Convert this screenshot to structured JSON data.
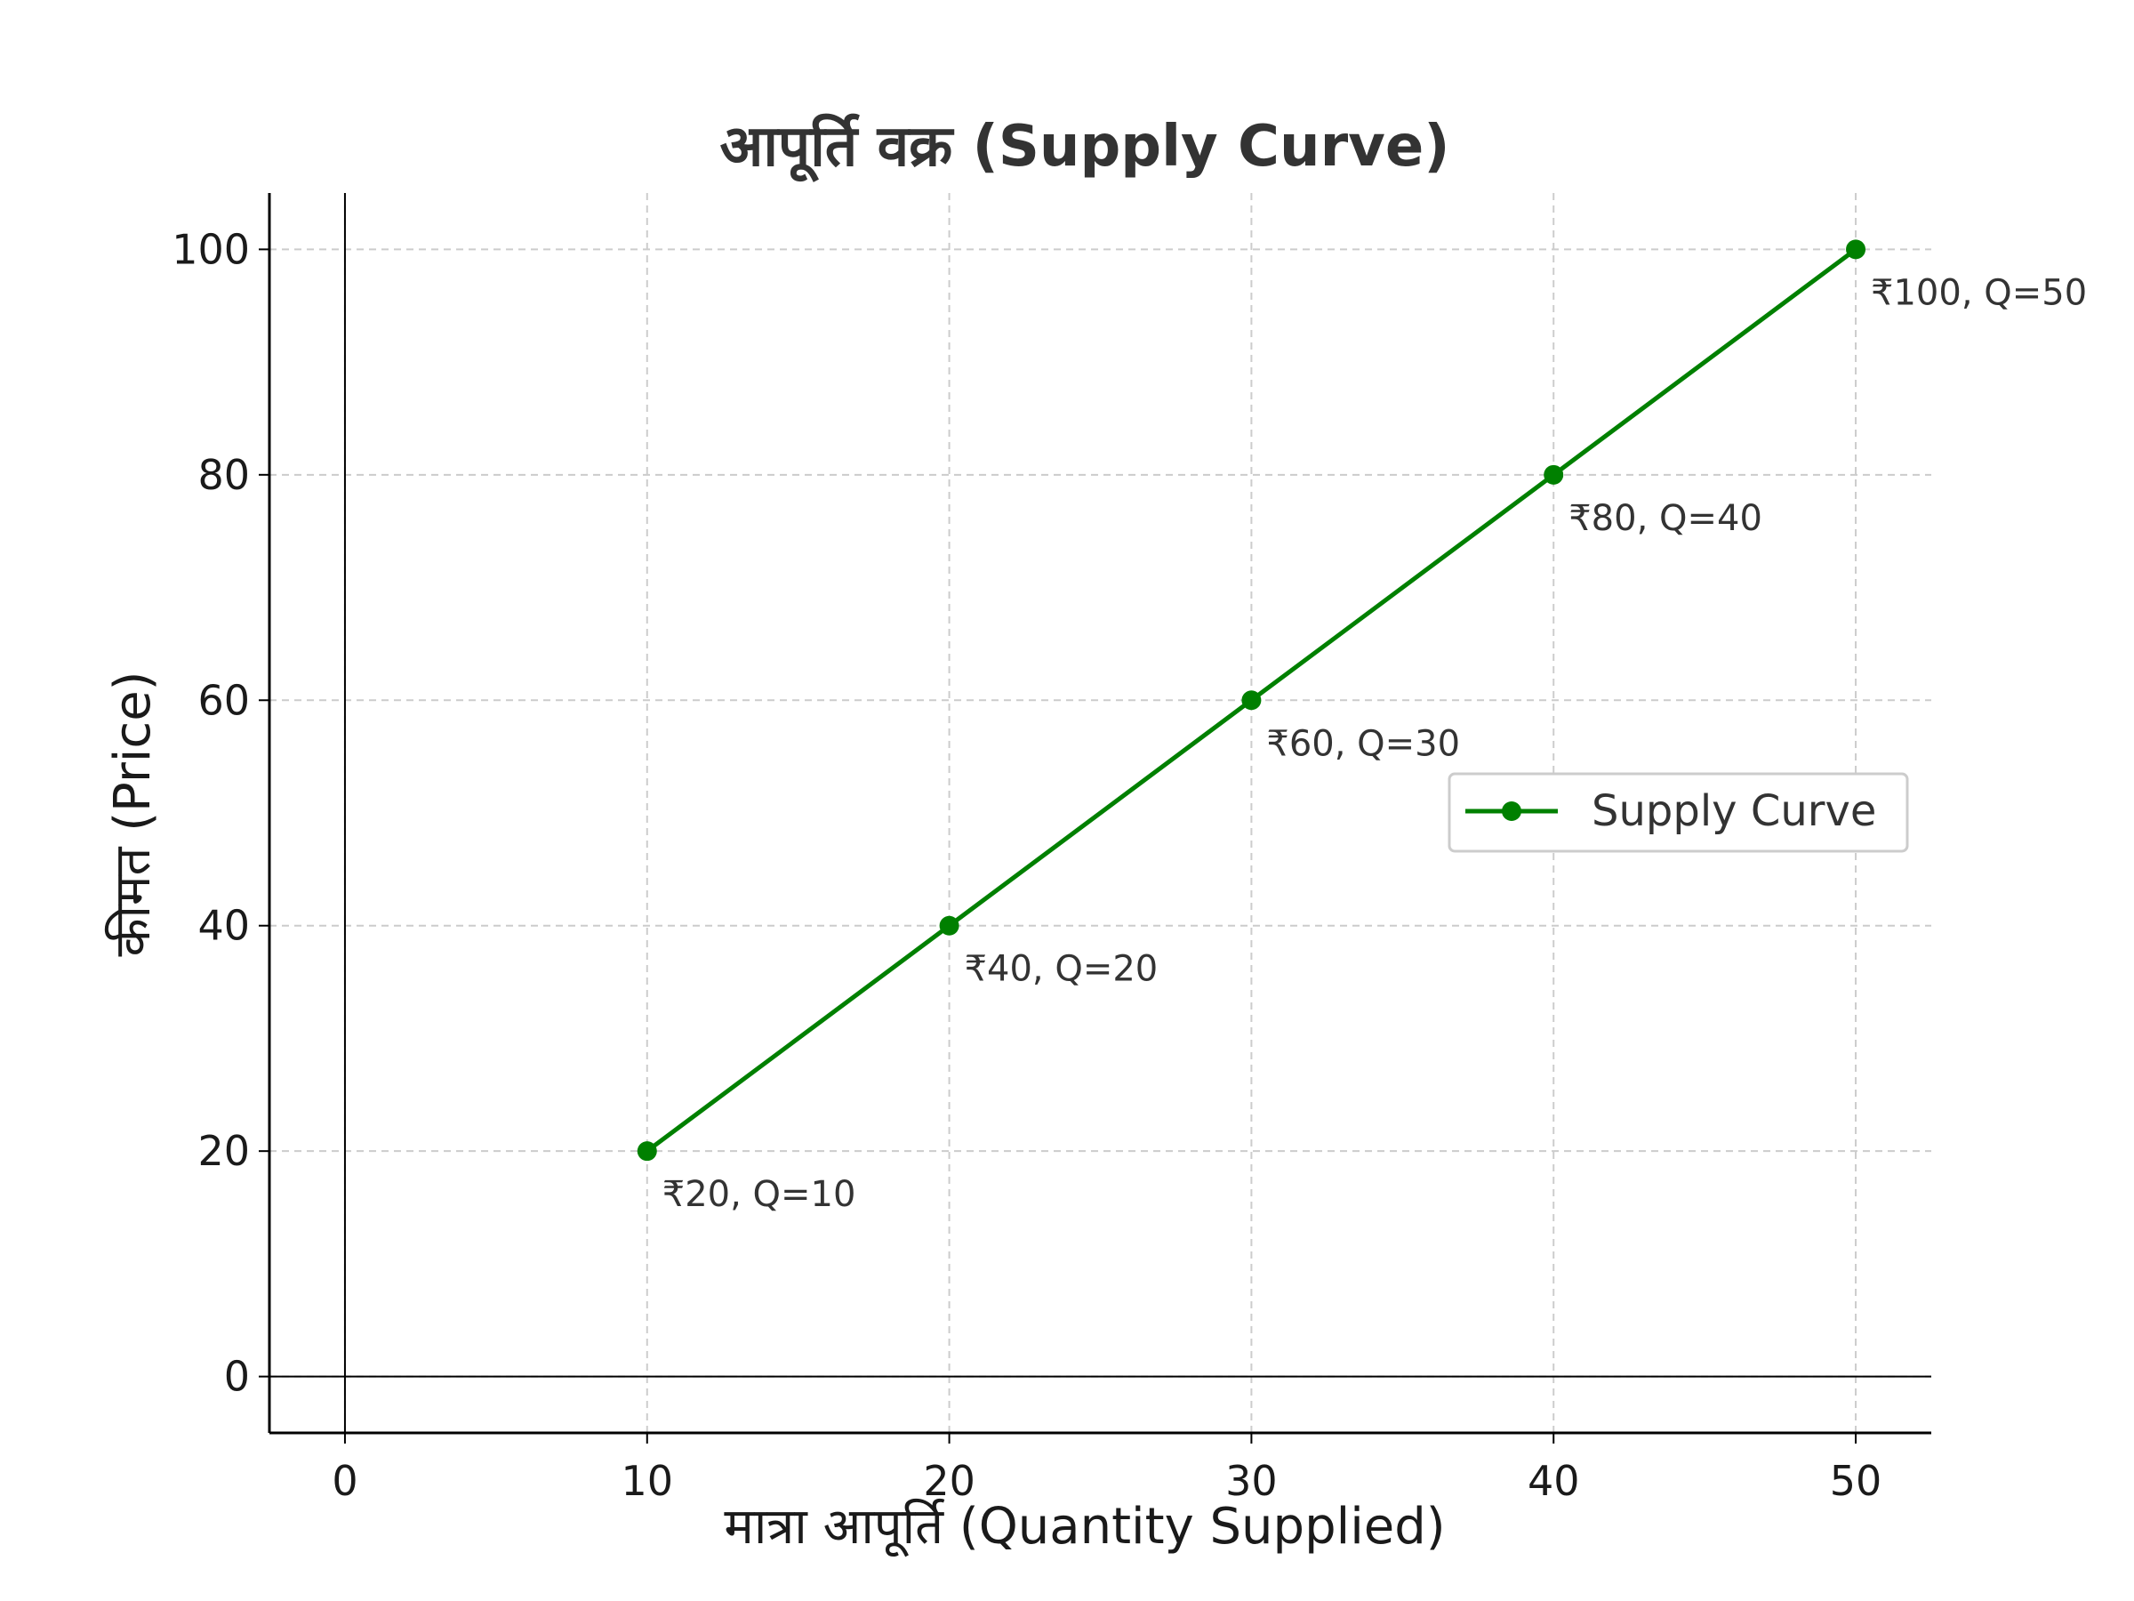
{
  "chart_data": {
    "type": "line",
    "title": "आपूर्ति वक्र (Supply Curve)",
    "xlabel": "मात्रा आपूर्ति (Quantity Supplied)",
    "ylabel": "कीमत (Price)",
    "xlim": [
      -2.5,
      52.5
    ],
    "ylim": [
      -5,
      105
    ],
    "xticks": [
      0,
      10,
      20,
      30,
      40,
      50
    ],
    "yticks": [
      0,
      20,
      40,
      60,
      80,
      100
    ],
    "grid": true,
    "legend_position": "right",
    "series": [
      {
        "name": "Supply Curve",
        "color": "#008000",
        "marker": "circle",
        "x": [
          10,
          20,
          30,
          40,
          50
        ],
        "y": [
          20,
          40,
          60,
          80,
          100
        ]
      }
    ],
    "annotations": [
      {
        "x": 10,
        "y": 20,
        "text": "₹20, Q=10"
      },
      {
        "x": 20,
        "y": 40,
        "text": "₹40, Q=20"
      },
      {
        "x": 30,
        "y": 60,
        "text": "₹60, Q=30"
      },
      {
        "x": 40,
        "y": 80,
        "text": "₹80, Q=40"
      },
      {
        "x": 50,
        "y": 100,
        "text": "₹100, Q=50"
      }
    ],
    "reference_lines": {
      "x": 0,
      "y": 0
    },
    "colors": {
      "grid": "#cccccc",
      "axis": "#000000",
      "text": "#333333"
    }
  }
}
